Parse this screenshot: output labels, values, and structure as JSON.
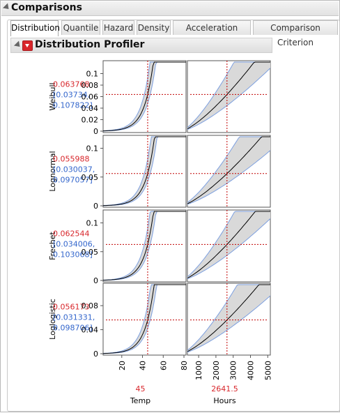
{
  "header": {
    "title": "Comparisons"
  },
  "tabs": [
    {
      "label": "Distribution",
      "active": true
    },
    {
      "label": "Quantile",
      "active": false
    },
    {
      "label": "Hazard",
      "active": false
    },
    {
      "label": "Density",
      "active": false
    },
    {
      "label": "Acceleration Factor",
      "active": false
    },
    {
      "label": "Comparison Criterion",
      "active": false
    }
  ],
  "profiler": {
    "title": "Distribution Profiler"
  },
  "colors": {
    "value_red": "#d8262b",
    "interval_blue": "#3366cc",
    "band_fill": "#d9d9d9",
    "band_edge": "#7da0e0",
    "crosshair": "#c00000"
  },
  "rows": [
    {
      "distribution": "Weibull",
      "estimate": "0.063768",
      "ci_lower": "[0.03734,",
      "ci_upper": "0.107822]",
      "ylim": [
        0,
        0.12
      ],
      "yticks": [
        "0.1",
        "0.08",
        "0.06",
        "0.04",
        "0.02",
        "0"
      ],
      "ytick_vals": [
        0.1,
        0.08,
        0.06,
        0.04,
        0.02,
        0
      ]
    },
    {
      "distribution": "Lognormal",
      "estimate": "0.055988",
      "ci_lower": "[0.030037,",
      "ci_upper": "0.097057]",
      "ylim": [
        0,
        0.12
      ],
      "yticks": [
        "0.1",
        "0.05",
        "0"
      ],
      "ytick_vals": [
        0.1,
        0.05,
        0
      ]
    },
    {
      "distribution": "Frechet",
      "estimate": "0.062544",
      "ci_lower": "[0.034006,",
      "ci_upper": "0.103068]",
      "ylim": [
        0,
        0.12
      ],
      "yticks": [
        "0.1",
        "0.05",
        "0"
      ],
      "ytick_vals": [
        0.1,
        0.05,
        0
      ]
    },
    {
      "distribution": "Loglogistic",
      "estimate": "0.056173",
      "ci_lower": "[0.031331,",
      "ci_upper": "0.098706]",
      "ylim": [
        0,
        0.115
      ],
      "yticks": [
        "0.08",
        "0.04",
        "0"
      ],
      "ytick_vals": [
        0.08,
        0.04,
        0
      ]
    }
  ],
  "factors": [
    {
      "name": "Temp",
      "value": "45",
      "xlim": [
        2,
        82
      ],
      "xticks": [
        "20",
        "40",
        "60",
        "80"
      ],
      "xtick_vals": [
        20,
        40,
        60,
        80
      ],
      "current": 45
    },
    {
      "name": "Hours",
      "value": "2641.5",
      "xlim": [
        350,
        5150
      ],
      "xticks": [
        "1000",
        "2000",
        "3000",
        "4000",
        "5000"
      ],
      "xtick_vals": [
        1000,
        2000,
        3000,
        4000,
        5000
      ],
      "current": 2641.5
    }
  ]
}
